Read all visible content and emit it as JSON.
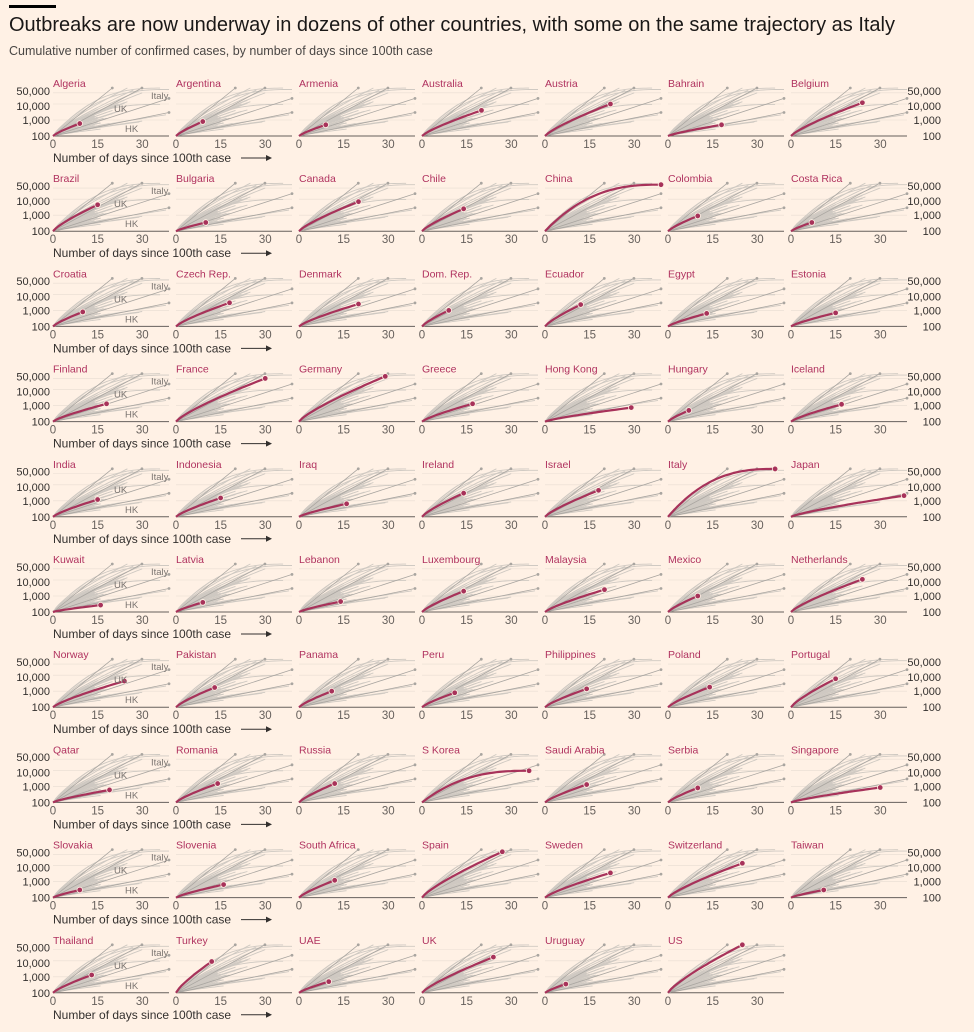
{
  "title": "Outbreaks are now underway in dozens of other countries, with some on the same trajectory as Italy",
  "subtitle": "Cumulative number of confirmed cases, by number of days since 100th case",
  "colors": {
    "background": "#fff1e5",
    "highlight": "#a7325a",
    "others": "#cfc9c2",
    "reference": "#a9a5a0",
    "axis": "#66605c",
    "country_label": "#b0325f"
  },
  "chart_data": {
    "type": "line",
    "layout": "small-multiples",
    "x_axis": {
      "label": "Number of days since 100th case",
      "ticks": [
        0,
        15,
        30
      ],
      "xlim": [
        0,
        39
      ]
    },
    "y_axis": {
      "scale": "log",
      "ticks": [
        100,
        1000,
        10000,
        50000
      ],
      "tick_labels": [
        "100",
        "1,000",
        "10,000",
        "50,000"
      ],
      "ylim": [
        100,
        100000
      ]
    },
    "reference_labels": [
      "Italy",
      "UK",
      "HK"
    ],
    "series": [
      {
        "name": "Algeria",
        "days": 9,
        "last": 600
      },
      {
        "name": "Argentina",
        "days": 9,
        "last": 800
      },
      {
        "name": "Armenia",
        "days": 9,
        "last": 500
      },
      {
        "name": "Australia",
        "days": 20,
        "last": 4000
      },
      {
        "name": "Austria",
        "days": 22,
        "last": 10000
      },
      {
        "name": "Bahrain",
        "days": 18,
        "last": 500
      },
      {
        "name": "Belgium",
        "days": 24,
        "last": 12000
      },
      {
        "name": "Brazil",
        "days": 15,
        "last": 4500
      },
      {
        "name": "Bulgaria",
        "days": 10,
        "last": 350
      },
      {
        "name": "Canada",
        "days": 20,
        "last": 7000
      },
      {
        "name": "Chile",
        "days": 14,
        "last": 2500
      },
      {
        "name": "China",
        "days": 39,
        "last": 81000
      },
      {
        "name": "Colombia",
        "days": 10,
        "last": 900
      },
      {
        "name": "Costa Rica",
        "days": 7,
        "last": 350
      },
      {
        "name": "Croatia",
        "days": 10,
        "last": 800
      },
      {
        "name": "Czech Rep.",
        "days": 18,
        "last": 3000
      },
      {
        "name": "Denmark",
        "days": 20,
        "last": 2500
      },
      {
        "name": "Dom. Rep.",
        "days": 9,
        "last": 1000
      },
      {
        "name": "Ecuador",
        "days": 12,
        "last": 2300
      },
      {
        "name": "Egypt",
        "days": 13,
        "last": 650
      },
      {
        "name": "Estonia",
        "days": 15,
        "last": 700
      },
      {
        "name": "Finland",
        "days": 18,
        "last": 1300
      },
      {
        "name": "France",
        "days": 30,
        "last": 50000
      },
      {
        "name": "Germany",
        "days": 29,
        "last": 67000
      },
      {
        "name": "Greece",
        "days": 17,
        "last": 1300
      },
      {
        "name": "Hong Kong",
        "days": 29,
        "last": 750
      },
      {
        "name": "Hungary",
        "days": 7,
        "last": 500
      },
      {
        "name": "Iceland",
        "days": 17,
        "last": 1200
      },
      {
        "name": "India",
        "days": 15,
        "last": 1200
      },
      {
        "name": "Indonesia",
        "days": 15,
        "last": 1500
      },
      {
        "name": "Iraq",
        "days": 16,
        "last": 650
      },
      {
        "name": "Ireland",
        "days": 14,
        "last": 3000
      },
      {
        "name": "Israel",
        "days": 18,
        "last": 4500
      },
      {
        "name": "Italy",
        "days": 36,
        "last": 98000
      },
      {
        "name": "Japan",
        "days": 38,
        "last": 2100
      },
      {
        "name": "Kuwait",
        "days": 16,
        "last": 270
      },
      {
        "name": "Latvia",
        "days": 9,
        "last": 400
      },
      {
        "name": "Lebanon",
        "days": 14,
        "last": 450
      },
      {
        "name": "Luxembourg",
        "days": 14,
        "last": 2000
      },
      {
        "name": "Malaysia",
        "days": 20,
        "last": 2500
      },
      {
        "name": "Mexico",
        "days": 10,
        "last": 1000
      },
      {
        "name": "Netherlands",
        "days": 24,
        "last": 11000
      },
      {
        "name": "Norway",
        "days": 24,
        "last": 4300
      },
      {
        "name": "Pakistan",
        "days": 13,
        "last": 1700
      },
      {
        "name": "Panama",
        "days": 11,
        "last": 1000
      },
      {
        "name": "Peru",
        "days": 11,
        "last": 800
      },
      {
        "name": "Philippines",
        "days": 14,
        "last": 1400
      },
      {
        "name": "Poland",
        "days": 14,
        "last": 1800
      },
      {
        "name": "Portugal",
        "days": 15,
        "last": 6000
      },
      {
        "name": "Qatar",
        "days": 19,
        "last": 600
      },
      {
        "name": "Romania",
        "days": 14,
        "last": 1500
      },
      {
        "name": "Russia",
        "days": 12,
        "last": 1500
      },
      {
        "name": "S Korea",
        "days": 36,
        "last": 9500
      },
      {
        "name": "Saudi Arabia",
        "days": 14,
        "last": 1300
      },
      {
        "name": "Serbia",
        "days": 10,
        "last": 800
      },
      {
        "name": "Singapore",
        "days": 30,
        "last": 850
      },
      {
        "name": "Slovakia",
        "days": 9,
        "last": 300
      },
      {
        "name": "Slovenia",
        "days": 16,
        "last": 650
      },
      {
        "name": "South Africa",
        "days": 12,
        "last": 1200
      },
      {
        "name": "Spain",
        "days": 27,
        "last": 73000
      },
      {
        "name": "Sweden",
        "days": 22,
        "last": 3500
      },
      {
        "name": "Switzerland",
        "days": 25,
        "last": 14000
      },
      {
        "name": "Taiwan",
        "days": 11,
        "last": 300
      },
      {
        "name": "Thailand",
        "days": 13,
        "last": 1300
      },
      {
        "name": "Turkey",
        "days": 12,
        "last": 9000
      },
      {
        "name": "UAE",
        "days": 10,
        "last": 500
      },
      {
        "name": "UK",
        "days": 24,
        "last": 17000
      },
      {
        "name": "Uruguay",
        "days": 7,
        "last": 350
      },
      {
        "name": "US",
        "days": 25,
        "last": 100000
      }
    ]
  }
}
